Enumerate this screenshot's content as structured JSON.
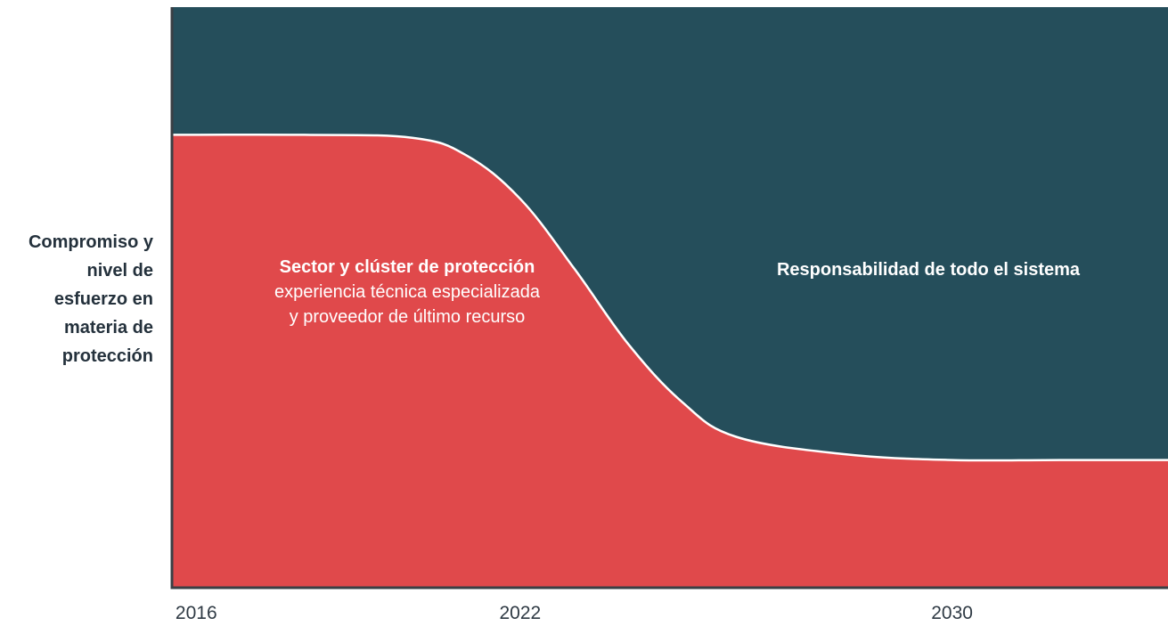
{
  "chart_data": {
    "type": "area",
    "title": "",
    "ylabel_lines": [
      "Compromiso y",
      "nivel de",
      "esfuerzo en",
      "materia de",
      "protección"
    ],
    "xlabel": "",
    "x_ticks": [
      "2016",
      "2022",
      "2030"
    ],
    "series": [
      {
        "name": "Sector y clúster de protección",
        "description_lines": [
          "experiencia técnica especializada",
          "y proveedor de último recurso"
        ],
        "color": "#e0494b",
        "x": [
          2016,
          2018,
          2020,
          2021,
          2022,
          2023,
          2024,
          2025,
          2026,
          2028,
          2030,
          2032,
          2034
        ],
        "values": [
          0.78,
          0.78,
          0.775,
          0.745,
          0.67,
          0.55,
          0.42,
          0.32,
          0.26,
          0.23,
          0.22,
          0.22,
          0.22
        ]
      },
      {
        "name": "Responsabilidad de todo el sistema",
        "color": "#254e5b"
      }
    ],
    "xlim": [
      2015.55,
      2034
    ],
    "ylim": [
      0,
      1
    ],
    "grid": false,
    "legend": "none"
  },
  "colors": {
    "line": "#ffffff",
    "axis": "#3a3f44"
  }
}
